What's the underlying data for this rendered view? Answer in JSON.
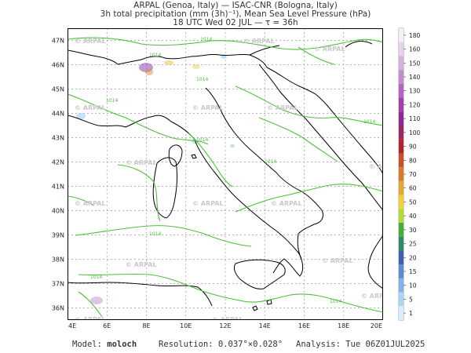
{
  "header": {
    "line1": "ARPAL (Genoa, Italy)  —  ISAC-CNR (Bologna, Italy)",
    "line2": "3h total precipitation (mm (3h)⁻¹), Mean Sea Level Pressure (hPa)",
    "line3": "18 UTC Wed 02 JUL  —  τ = 36h"
  },
  "map": {
    "lat_labels": [
      "47N",
      "46N",
      "45N",
      "44N",
      "43N",
      "42N",
      "41N",
      "40N",
      "39N",
      "38N",
      "37N",
      "36N"
    ],
    "lon_labels": [
      "4E",
      "6E",
      "8E",
      "10E",
      "12E",
      "14E",
      "16E",
      "18E",
      "20E"
    ],
    "watermark": "ARPAL",
    "isobar_labels": [
      "1014",
      "1014",
      "1014",
      "1014",
      "1014",
      "1014",
      "1014",
      "1014",
      "1014",
      "1014"
    ],
    "colors": {
      "isobar": "#4cc23a",
      "coast": "#000000",
      "grid": "#9a9a9a"
    }
  },
  "colorbar": {
    "levels": [
      "180",
      "160",
      "150",
      "140",
      "130",
      "120",
      "110",
      "100",
      "90",
      "80",
      "70",
      "60",
      "50",
      "40",
      "30",
      "25",
      "20",
      "15",
      "10",
      "5",
      "1"
    ],
    "colors": [
      "#f2f2f2",
      "#e3d2ea",
      "#d3b0dd",
      "#c48ccd",
      "#b366bd",
      "#a040a8",
      "#8b2b8f",
      "#962864",
      "#b0232a",
      "#c5512a",
      "#d57b2b",
      "#e2a72d",
      "#eed23a",
      "#b5d83a",
      "#3fae3a",
      "#2f8a6a",
      "#3f5fb0",
      "#5b8ad0",
      "#82b2e6",
      "#acd3f0",
      "#d8edf9"
    ]
  },
  "footer": {
    "model_label": "Model:",
    "model_value": "moloch",
    "resolution_label": "Resolution:",
    "resolution_value": "0.037°×0.028°",
    "analysis_label": "Analysis:",
    "analysis_value": "Tue 06Z01JUL2025"
  }
}
